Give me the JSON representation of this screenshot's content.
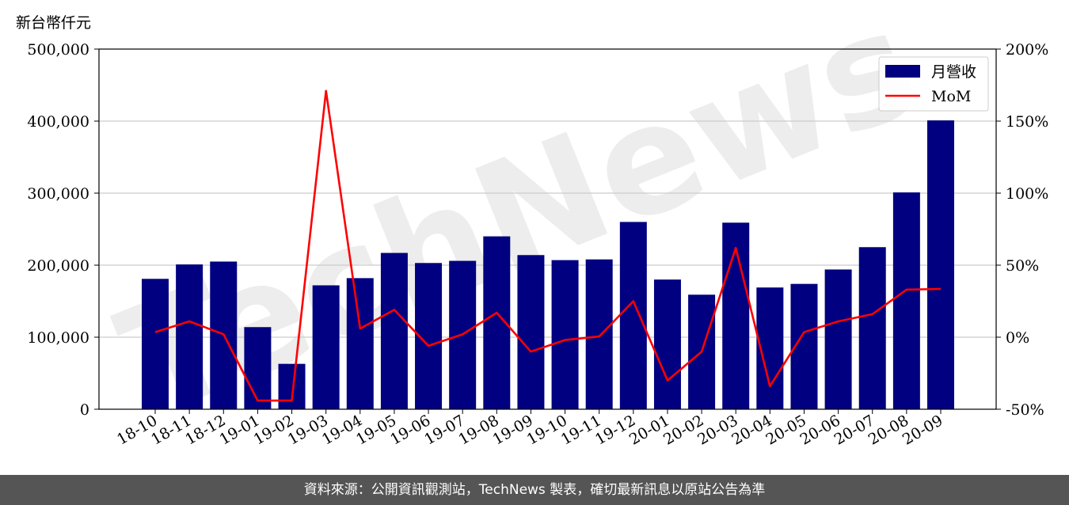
{
  "chart_data": {
    "type": "bar",
    "ylabel": "新台幣仟元",
    "categories": [
      "18-10",
      "18-11",
      "18-12",
      "19-01",
      "19-02",
      "19-03",
      "19-04",
      "19-05",
      "19-06",
      "19-07",
      "19-08",
      "19-09",
      "19-10",
      "19-11",
      "19-12",
      "20-01",
      "20-02",
      "20-03",
      "20-04",
      "20-05",
      "20-06",
      "20-07",
      "20-08",
      "20-09"
    ],
    "series": [
      {
        "name": "月營收",
        "type": "bar",
        "axis": "left",
        "color": "#000080",
        "values": [
          181000,
          201000,
          205000,
          114000,
          63000,
          172000,
          182000,
          217000,
          203000,
          206000,
          240000,
          214000,
          207000,
          208000,
          260000,
          180000,
          159000,
          259000,
          169000,
          174000,
          194000,
          225000,
          301000,
          401000
        ]
      },
      {
        "name": "MoM",
        "type": "line",
        "axis": "right",
        "color": "#ff0000",
        "values": [
          3.5,
          11,
          2,
          -44,
          -44,
          171,
          6,
          19,
          -6,
          2,
          17,
          -10,
          -2,
          0.5,
          25,
          -30,
          -10,
          62,
          -34,
          3.5,
          11,
          16,
          33,
          33.5
        ]
      }
    ],
    "ylim": [
      0,
      500000
    ],
    "y_ticks": [
      "0",
      "100,000",
      "200,000",
      "300,000",
      "400,000",
      "500,000"
    ],
    "y2lim": [
      -50,
      200
    ],
    "y2_ticks": [
      "-50%",
      "0%",
      "50%",
      "100%",
      "150%",
      "200%"
    ],
    "grid": "horizontal",
    "legend_position": "top-right"
  },
  "watermark": "TechNews",
  "footer": "資料來源：公開資訊觀測站，TechNews 製表，確切最新訊息以原站公告為準"
}
